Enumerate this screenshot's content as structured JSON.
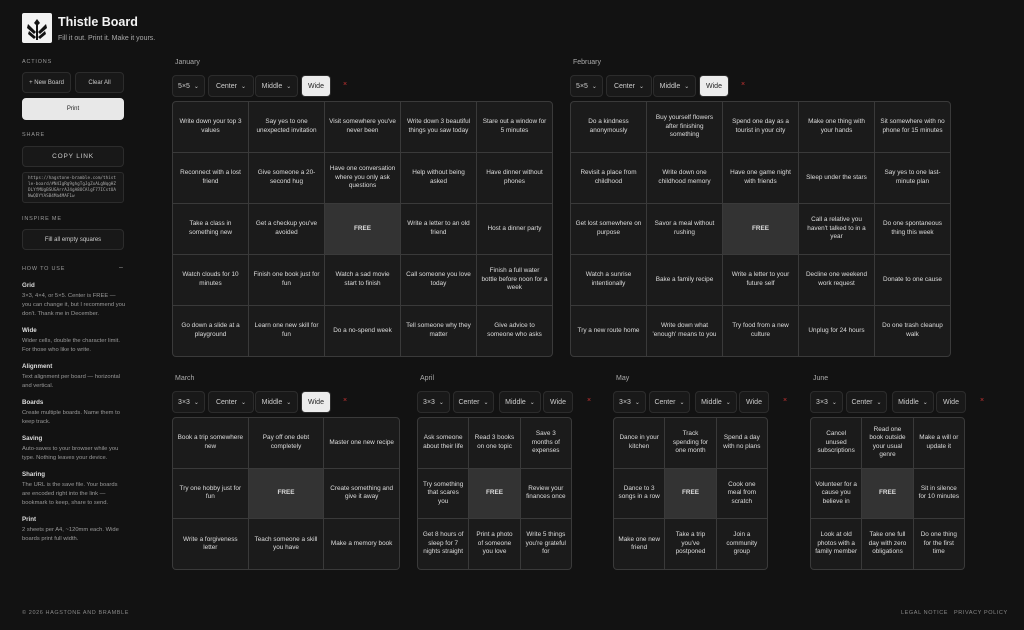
{
  "app": {
    "title": "Thistle Board",
    "tagline": "Fill it out. Print it. Make it yours."
  },
  "sidebar": {
    "actions_label": "ACTIONS",
    "new_board": "+ New Board",
    "clear_all": "Clear All",
    "print": "Print",
    "share_label": "SHARE",
    "copy_link": "COPY LINK",
    "share_url": "https://hagstone-bramble.com/thistle-board/#N4IgRg9ghgTgJgZxALgNqgHZDLYfMUgBSUGArrAJ4gA8OCAlgF77ICstUANwQDYYASB4Ma4MAF1w",
    "inspire_label": "INSPIRE ME",
    "fill_empty": "Fill all empty squares",
    "howto_label": "HOW TO USE",
    "howto_toggle": "–",
    "howto": [
      {
        "h": "Grid",
        "p": "3×3, 4×4, or 5×5. Center is FREE — you can change it, but I recommend you don't. Thank me in December."
      },
      {
        "h": "Wide",
        "p": "Wider cells, double the character limit. For those who like to write."
      },
      {
        "h": "Alignment",
        "p": "Text alignment per board — horizontal and vertical."
      },
      {
        "h": "Boards",
        "p": "Create multiple boards. Name them to keep track."
      },
      {
        "h": "Saving",
        "p": "Auto-saves to your browser while you type. Nothing leaves your device."
      },
      {
        "h": "Sharing",
        "p": "The URL is the save file. Your boards are encoded right into the link — bookmark to keep, share to send."
      },
      {
        "h": "Print",
        "p": "2 sheets per A4, ~120mm each. Wide boards print full width."
      }
    ]
  },
  "footer": {
    "copyright": "© 2026 HAGSTONE AND BRAMBLE",
    "legal": "LEGAL NOTICE",
    "privacy": "PRIVACY POLICY"
  },
  "colors": {
    "background": "#121212",
    "cell": "#1b1b1b",
    "free_cell": "#333333",
    "delete": "#cc3333"
  },
  "boards": [
    {
      "name": "January",
      "grid": "5×5",
      "align": "Center",
      "valign": "Middle",
      "wide_label": "Wide",
      "wide": true,
      "delete": "×",
      "cells": [
        "Write down your top 3 values",
        "Say yes to one unexpected invitation",
        "Visit somewhere you've never been",
        "Write down 3 beautiful things you saw today",
        "Stare out a window for 5 minutes",
        "Reconnect with a lost friend",
        "Give someone a 20-second hug",
        "Have one conversation where you only ask questions",
        "Help without being asked",
        "Have dinner without phones",
        "Take a class in something new",
        "Get a checkup you've avoided",
        "FREE",
        "Write a letter to an old friend",
        "Host a dinner party",
        "Watch clouds for 10 minutes",
        "Finish one book just for fun",
        "Watch a sad movie start to finish",
        "Call someone you love today",
        "Finish a full water bottle before noon for a week",
        "Go down a slide at a playground",
        "Learn one new skill for fun",
        "Do a no-spend week",
        "Tell someone why they matter",
        "Give advice to someone who asks"
      ]
    },
    {
      "name": "February",
      "grid": "5×5",
      "align": "Center",
      "valign": "Middle",
      "wide_label": "Wide",
      "wide": true,
      "delete": "×",
      "cells": [
        "Do a kindness anonymously",
        "Buy yourself flowers after finishing something",
        "Spend one day as a tourist in your city",
        "Make one thing with your hands",
        "Sit somewhere with no phone for 15 minutes",
        "Revisit a place from childhood",
        "Write down one childhood memory",
        "Have one game night with friends",
        "Sleep under the stars",
        "Say yes to one last-minute plan",
        "Get lost somewhere on purpose",
        "Savor a meal without rushing",
        "FREE",
        "Call a relative you haven't talked to in a year",
        "Do one spontaneous thing this week",
        "Watch a sunrise intentionally",
        "Bake a family recipe",
        "Write a letter to your future self",
        "Decline one weekend work request",
        "Donate to one cause",
        "Try a new route home",
        "Write down what 'enough' means to you",
        "Try food from a new culture",
        "Unplug for 24 hours",
        "Do one trash cleanup walk"
      ]
    },
    {
      "name": "March",
      "grid": "3×3",
      "align": "Center",
      "valign": "Middle",
      "wide_label": "Wide",
      "wide": true,
      "delete": "×",
      "cells": [
        "Book a trip somewhere new",
        "Pay off one debt completely",
        "Master one new recipe",
        "Try one hobby just for fun",
        "FREE",
        "Create something and give it away",
        "Write a forgiveness letter",
        "Teach someone a skill you have",
        "Make a memory book"
      ]
    },
    {
      "name": "April",
      "grid": "3×3",
      "align": "Center",
      "valign": "Middle",
      "wide_label": "Wide",
      "wide": false,
      "delete": "×",
      "cells": [
        "Ask someone about their life",
        "Read 3 books on one topic",
        "Save 3 months of expenses",
        "Try something that scares you",
        "FREE",
        "Review your finances once",
        "Get 8 hours of sleep for 7 nights straight",
        "Print a photo of someone you love",
        "Write 5 things you're grateful for"
      ]
    },
    {
      "name": "May",
      "grid": "3×3",
      "align": "Center",
      "valign": "Middle",
      "wide_label": "Wide",
      "wide": false,
      "delete": "×",
      "cells": [
        "Dance in your kitchen",
        "Track spending for one month",
        "Spend a day with no plans",
        "Dance to 3 songs in a row",
        "FREE",
        "Cook one meal from scratch",
        "Make one new friend",
        "Take a trip you've postponed",
        "Join a community group"
      ]
    },
    {
      "name": "June",
      "grid": "3×3",
      "align": "Center",
      "valign": "Middle",
      "wide_label": "Wide",
      "wide": false,
      "delete": "×",
      "cells": [
        "Cancel unused subscriptions",
        "Read one book outside your usual genre",
        "Make a will or update it",
        "Volunteer for a cause you believe in",
        "FREE",
        "Sit in silence for 10 minutes",
        "Look at old photos with a family member",
        "Take one full day with zero obligations",
        "Do one thing for the first time"
      ]
    }
  ]
}
